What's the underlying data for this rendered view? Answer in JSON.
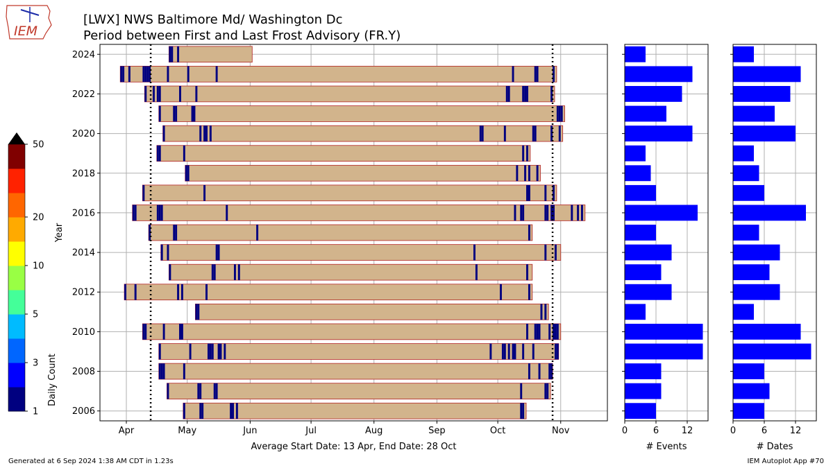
{
  "logo": {
    "text": "IEM"
  },
  "title_line1": "[LWX] NWS Baltimore Md/ Washington Dc",
  "title_line2": "Period between First and Last Frost Advisory (FR.Y)",
  "footer_left": "Generated at 6 Sep 2024 1:38 AM CDT in 1.23s",
  "footer_right": "IEM Autoplot App #70",
  "colors": {
    "period_fill": "#d2b48c",
    "period_edge": "#b22222",
    "event_mark": "#000080",
    "event_mark_light": "#1e5bd6",
    "histogram": "#0000ff",
    "grid": "#b0b0b0"
  },
  "colorbar": {
    "label": "Daily Count",
    "tick_labels": [
      "1",
      "3",
      "5",
      "10",
      "20",
      "50"
    ],
    "levels": [
      1,
      2,
      3,
      4,
      5,
      7,
      10,
      15,
      20,
      25,
      50
    ],
    "colors": [
      "#000080",
      "#0000ff",
      "#0066ff",
      "#00bbff",
      "#44ff99",
      "#99ff44",
      "#ffff00",
      "#ffaa00",
      "#ff6600",
      "#ff2200",
      "#800000"
    ],
    "extend_color": "#000000"
  },
  "chart_data": [
    {
      "type": "bar",
      "orientation": "horizontal",
      "description_of_marks": "floating bars per year from first to last advisory day-of-year, with event ticks",
      "xlabel": "Average Start Date: 13 Apr, End Date: 28 Oct",
      "ylabel": "Year",
      "x_tick_labels": [
        "Apr",
        "May",
        "Jun",
        "Jul",
        "Aug",
        "Sep",
        "Oct",
        "Nov"
      ],
      "x_ticks_doy": [
        91,
        121,
        152,
        182,
        213,
        244,
        274,
        305
      ],
      "xlim_doy": [
        78,
        328
      ],
      "y_ticks": [
        2006,
        2008,
        2010,
        2012,
        2014,
        2016,
        2018,
        2020,
        2022,
        2024
      ],
      "ylim": [
        2005.5,
        2024.5
      ],
      "avg_start_doy": 103,
      "avg_end_doy": 301,
      "grid": true,
      "years": [
        {
          "year": 2024,
          "start": 112,
          "end": 152,
          "events": [
            112,
            113,
            116
          ]
        },
        {
          "year": 2023,
          "start": 88,
          "end": 302,
          "events": [
            88,
            89,
            92,
            99,
            100,
            101,
            102,
            111,
            121,
            135,
            281,
            292,
            293,
            301
          ]
        },
        {
          "year": 2022,
          "start": 100,
          "end": 301,
          "events": [
            100,
            104,
            106,
            107,
            117,
            125,
            278,
            279,
            286,
            287,
            288,
            300
          ]
        },
        {
          "year": 2021,
          "start": 107,
          "end": 306,
          "events": [
            107,
            114,
            115,
            123,
            124,
            303,
            304,
            305
          ]
        },
        {
          "year": 2020,
          "start": 109,
          "end": 305,
          "events": [
            109,
            127,
            129,
            130,
            132,
            265,
            266,
            277,
            291,
            292,
            300,
            304
          ]
        },
        {
          "year": 2019,
          "start": 106,
          "end": 289,
          "events": [
            106,
            107,
            119,
            286,
            288
          ]
        },
        {
          "year": 2018,
          "start": 120,
          "end": 294,
          "events": [
            120,
            121,
            283,
            287,
            289,
            293
          ]
        },
        {
          "year": 2017,
          "start": 99,
          "end": 302,
          "events": [
            99,
            129,
            288,
            289,
            297,
            301
          ]
        },
        {
          "year": 2016,
          "start": 94,
          "end": 316,
          "events": [
            94,
            95,
            106,
            107,
            108,
            140,
            282,
            285,
            286,
            297,
            298,
            300,
            301,
            310,
            313,
            315
          ]
        },
        {
          "year": 2015,
          "start": 102,
          "end": 290,
          "events": [
            102,
            114,
            115,
            155,
            289
          ]
        },
        {
          "year": 2014,
          "start": 108,
          "end": 304,
          "events": [
            108,
            111,
            135,
            136,
            262,
            297,
            302
          ]
        },
        {
          "year": 2013,
          "start": 112,
          "end": 290,
          "events": [
            112,
            133,
            134,
            144,
            146,
            263,
            288
          ]
        },
        {
          "year": 2012,
          "start": 90,
          "end": 290,
          "events": [
            90,
            95,
            116,
            118,
            130,
            275,
            289
          ]
        },
        {
          "year": 2011,
          "start": 125,
          "end": 298,
          "events": [
            125,
            126,
            295,
            297
          ]
        },
        {
          "year": 2010,
          "start": 99,
          "end": 304,
          "events": [
            99,
            100,
            109,
            117,
            118,
            288,
            292,
            293,
            294,
            299,
            301,
            302,
            303
          ]
        },
        {
          "year": 2009,
          "start": 107,
          "end": 303,
          "events": [
            107,
            122,
            131,
            132,
            133,
            136,
            137,
            139,
            270,
            276,
            277,
            279,
            281,
            282,
            286,
            291,
            302,
            303
          ]
        },
        {
          "year": 2008,
          "start": 107,
          "end": 300,
          "events": [
            107,
            108,
            109,
            119,
            289,
            294,
            299,
            300
          ]
        },
        {
          "year": 2007,
          "start": 111,
          "end": 299,
          "events": [
            111,
            126,
            127,
            134,
            135,
            285,
            297,
            298
          ]
        },
        {
          "year": 2006,
          "start": 119,
          "end": 287,
          "events": [
            119,
            127,
            128,
            142,
            143,
            145,
            285,
            286
          ]
        }
      ]
    },
    {
      "type": "bar",
      "orientation": "horizontal",
      "xlabel": "# Events",
      "x_tick_labels": [
        "0",
        "6",
        "12"
      ],
      "xlim": [
        0,
        16
      ],
      "years": [
        2024,
        2023,
        2022,
        2021,
        2020,
        2019,
        2018,
        2017,
        2016,
        2015,
        2014,
        2013,
        2012,
        2011,
        2010,
        2009,
        2008,
        2007,
        2006
      ],
      "values": [
        4,
        13,
        11,
        8,
        13,
        4,
        5,
        6,
        14,
        6,
        9,
        7,
        9,
        4,
        15,
        15,
        7,
        7,
        6
      ]
    },
    {
      "type": "bar",
      "orientation": "horizontal",
      "xlabel": "# Dates",
      "x_tick_labels": [
        "0",
        "6",
        "12"
      ],
      "xlim": [
        0,
        16
      ],
      "years": [
        2024,
        2023,
        2022,
        2021,
        2020,
        2019,
        2018,
        2017,
        2016,
        2015,
        2014,
        2013,
        2012,
        2011,
        2010,
        2009,
        2008,
        2007,
        2006
      ],
      "values": [
        4,
        13,
        11,
        8,
        12,
        4,
        5,
        6,
        14,
        5,
        9,
        7,
        9,
        4,
        13,
        15,
        6,
        7,
        6
      ]
    }
  ]
}
